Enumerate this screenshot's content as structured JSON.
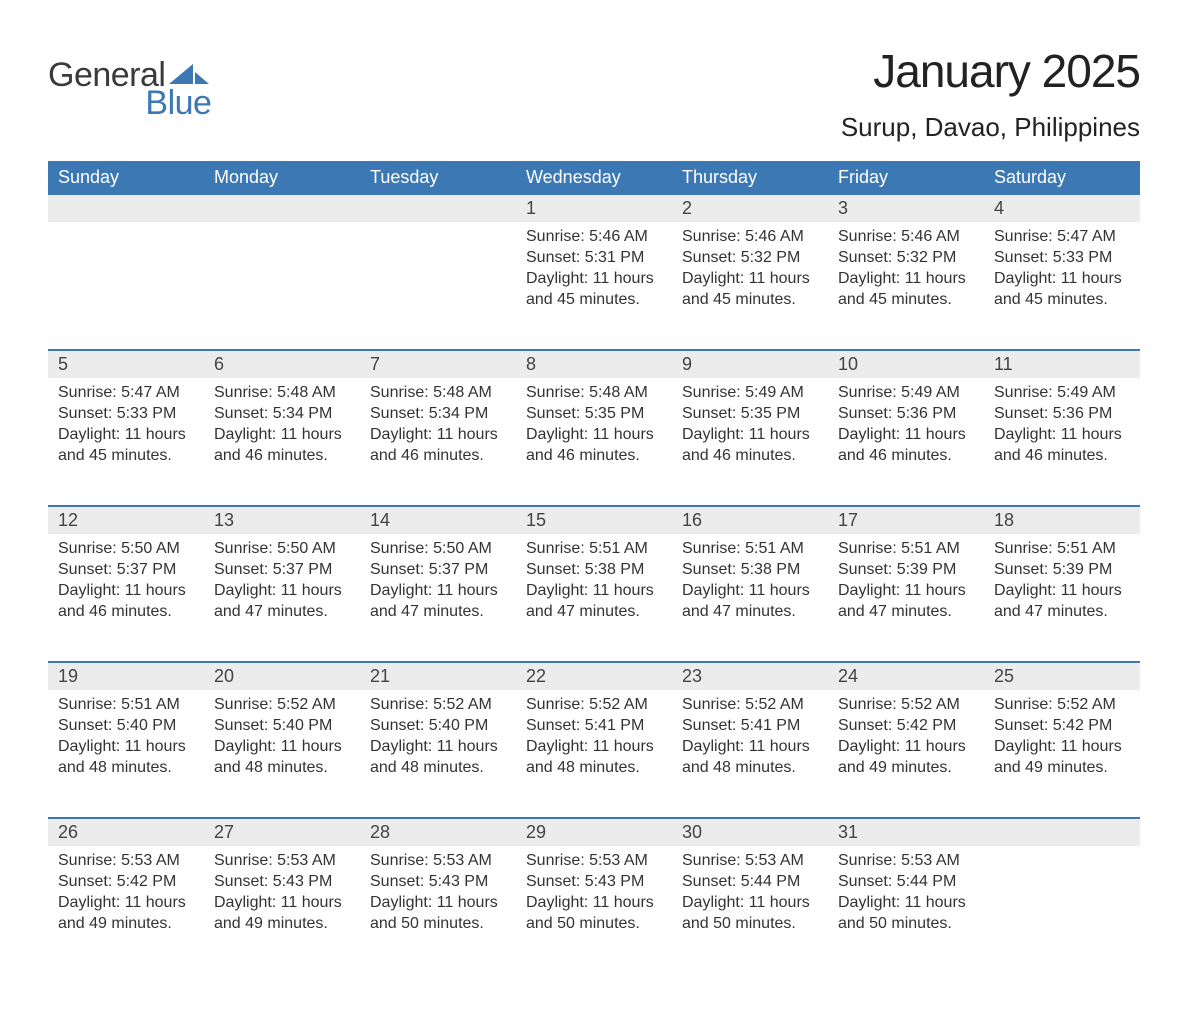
{
  "brand": {
    "word1": "General",
    "word2": "Blue",
    "sail_color": "#3C78B4",
    "text_gray": "#3a3a3a"
  },
  "title": "January 2025",
  "location": "Surup, Davao, Philippines",
  "colors": {
    "header_bg": "#3C78B4",
    "header_text": "#ffffff",
    "daynum_bg": "#ececec",
    "rule": "#3C78B4",
    "body_text": "#333333",
    "page_bg": "#ffffff"
  },
  "weekdays": [
    "Sunday",
    "Monday",
    "Tuesday",
    "Wednesday",
    "Thursday",
    "Friday",
    "Saturday"
  ],
  "labels": {
    "sunrise": "Sunrise: ",
    "sunset": "Sunset: ",
    "daylight": "Daylight: "
  },
  "weeks": [
    [
      null,
      null,
      null,
      {
        "n": "1",
        "sunrise": "5:46 AM",
        "sunset": "5:31 PM",
        "daylight": "11 hours and 45 minutes."
      },
      {
        "n": "2",
        "sunrise": "5:46 AM",
        "sunset": "5:32 PM",
        "daylight": "11 hours and 45 minutes."
      },
      {
        "n": "3",
        "sunrise": "5:46 AM",
        "sunset": "5:32 PM",
        "daylight": "11 hours and 45 minutes."
      },
      {
        "n": "4",
        "sunrise": "5:47 AM",
        "sunset": "5:33 PM",
        "daylight": "11 hours and 45 minutes."
      }
    ],
    [
      {
        "n": "5",
        "sunrise": "5:47 AM",
        "sunset": "5:33 PM",
        "daylight": "11 hours and 45 minutes."
      },
      {
        "n": "6",
        "sunrise": "5:48 AM",
        "sunset": "5:34 PM",
        "daylight": "11 hours and 46 minutes."
      },
      {
        "n": "7",
        "sunrise": "5:48 AM",
        "sunset": "5:34 PM",
        "daylight": "11 hours and 46 minutes."
      },
      {
        "n": "8",
        "sunrise": "5:48 AM",
        "sunset": "5:35 PM",
        "daylight": "11 hours and 46 minutes."
      },
      {
        "n": "9",
        "sunrise": "5:49 AM",
        "sunset": "5:35 PM",
        "daylight": "11 hours and 46 minutes."
      },
      {
        "n": "10",
        "sunrise": "5:49 AM",
        "sunset": "5:36 PM",
        "daylight": "11 hours and 46 minutes."
      },
      {
        "n": "11",
        "sunrise": "5:49 AM",
        "sunset": "5:36 PM",
        "daylight": "11 hours and 46 minutes."
      }
    ],
    [
      {
        "n": "12",
        "sunrise": "5:50 AM",
        "sunset": "5:37 PM",
        "daylight": "11 hours and 46 minutes."
      },
      {
        "n": "13",
        "sunrise": "5:50 AM",
        "sunset": "5:37 PM",
        "daylight": "11 hours and 47 minutes."
      },
      {
        "n": "14",
        "sunrise": "5:50 AM",
        "sunset": "5:37 PM",
        "daylight": "11 hours and 47 minutes."
      },
      {
        "n": "15",
        "sunrise": "5:51 AM",
        "sunset": "5:38 PM",
        "daylight": "11 hours and 47 minutes."
      },
      {
        "n": "16",
        "sunrise": "5:51 AM",
        "sunset": "5:38 PM",
        "daylight": "11 hours and 47 minutes."
      },
      {
        "n": "17",
        "sunrise": "5:51 AM",
        "sunset": "5:39 PM",
        "daylight": "11 hours and 47 minutes."
      },
      {
        "n": "18",
        "sunrise": "5:51 AM",
        "sunset": "5:39 PM",
        "daylight": "11 hours and 47 minutes."
      }
    ],
    [
      {
        "n": "19",
        "sunrise": "5:51 AM",
        "sunset": "5:40 PM",
        "daylight": "11 hours and 48 minutes."
      },
      {
        "n": "20",
        "sunrise": "5:52 AM",
        "sunset": "5:40 PM",
        "daylight": "11 hours and 48 minutes."
      },
      {
        "n": "21",
        "sunrise": "5:52 AM",
        "sunset": "5:40 PM",
        "daylight": "11 hours and 48 minutes."
      },
      {
        "n": "22",
        "sunrise": "5:52 AM",
        "sunset": "5:41 PM",
        "daylight": "11 hours and 48 minutes."
      },
      {
        "n": "23",
        "sunrise": "5:52 AM",
        "sunset": "5:41 PM",
        "daylight": "11 hours and 48 minutes."
      },
      {
        "n": "24",
        "sunrise": "5:52 AM",
        "sunset": "5:42 PM",
        "daylight": "11 hours and 49 minutes."
      },
      {
        "n": "25",
        "sunrise": "5:52 AM",
        "sunset": "5:42 PM",
        "daylight": "11 hours and 49 minutes."
      }
    ],
    [
      {
        "n": "26",
        "sunrise": "5:53 AM",
        "sunset": "5:42 PM",
        "daylight": "11 hours and 49 minutes."
      },
      {
        "n": "27",
        "sunrise": "5:53 AM",
        "sunset": "5:43 PM",
        "daylight": "11 hours and 49 minutes."
      },
      {
        "n": "28",
        "sunrise": "5:53 AM",
        "sunset": "5:43 PM",
        "daylight": "11 hours and 50 minutes."
      },
      {
        "n": "29",
        "sunrise": "5:53 AM",
        "sunset": "5:43 PM",
        "daylight": "11 hours and 50 minutes."
      },
      {
        "n": "30",
        "sunrise": "5:53 AM",
        "sunset": "5:44 PM",
        "daylight": "11 hours and 50 minutes."
      },
      {
        "n": "31",
        "sunrise": "5:53 AM",
        "sunset": "5:44 PM",
        "daylight": "11 hours and 50 minutes."
      },
      null
    ]
  ]
}
